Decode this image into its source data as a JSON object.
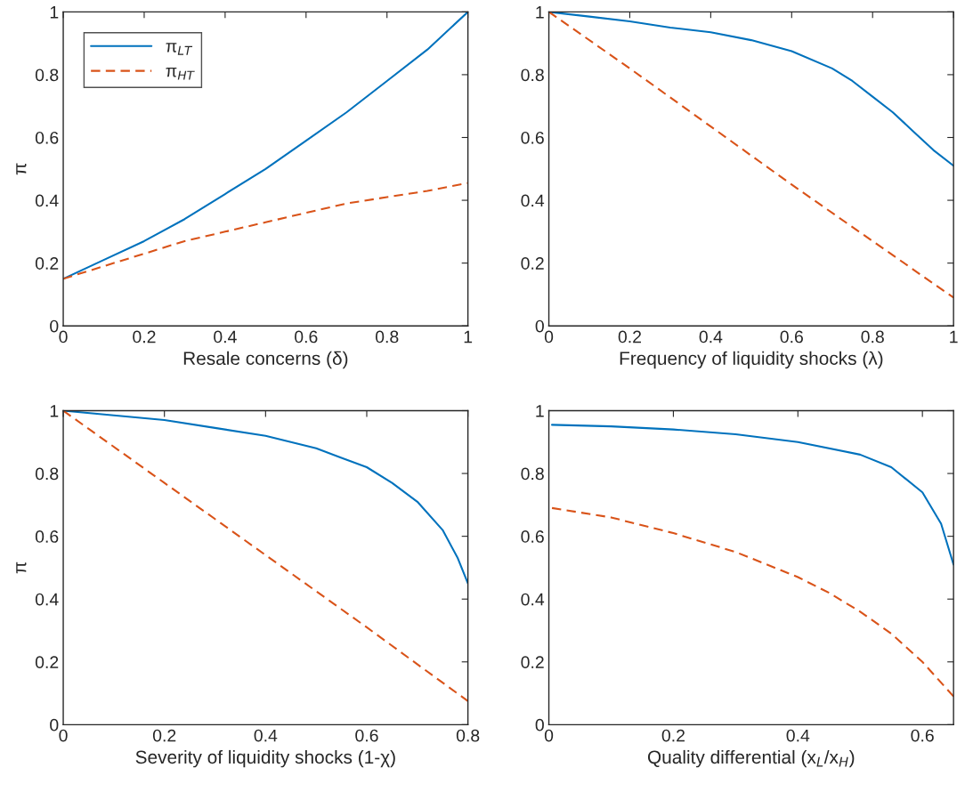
{
  "chart_data": [
    {
      "type": "line",
      "xlabel": "Resale concerns (δ)",
      "ylabel": "π",
      "xlim": [
        0,
        1
      ],
      "ylim": [
        0,
        1
      ],
      "xticks": [
        0,
        0.2,
        0.4,
        0.6,
        0.8,
        1
      ],
      "yticks": [
        0,
        0.2,
        0.4,
        0.6,
        0.8,
        1
      ],
      "legend": "top left",
      "grid": false,
      "series": [
        {
          "name": "π$_{LT}$",
          "color": "#0072bd",
          "line_style": "solid",
          "x": [
            0,
            0.1,
            0.2,
            0.3,
            0.4,
            0.5,
            0.6,
            0.7,
            0.8,
            0.9,
            1
          ],
          "values": [
            0.15,
            0.21,
            0.27,
            0.34,
            0.42,
            0.5,
            0.59,
            0.68,
            0.78,
            0.88,
            1.0
          ]
        },
        {
          "name": "π$_{HT}$",
          "color": "#d95319",
          "line_style": "dashed",
          "x": [
            0,
            0.1,
            0.2,
            0.3,
            0.4,
            0.5,
            0.6,
            0.7,
            0.8,
            0.9,
            1
          ],
          "values": [
            0.15,
            0.19,
            0.23,
            0.27,
            0.3,
            0.33,
            0.36,
            0.39,
            0.41,
            0.43,
            0.455
          ]
        }
      ]
    },
    {
      "type": "line",
      "xlabel": "Frequency of liquidity shocks (λ)",
      "xlim": [
        0,
        1
      ],
      "ylim": [
        0,
        1
      ],
      "xticks": [
        0,
        0.2,
        0.4,
        0.6,
        0.8,
        1
      ],
      "yticks": [
        0,
        0.2,
        0.4,
        0.6,
        0.8,
        1
      ],
      "grid": false,
      "series": [
        {
          "color": "#0072bd",
          "line_style": "solid",
          "x": [
            0,
            0.1,
            0.2,
            0.3,
            0.4,
            0.5,
            0.6,
            0.7,
            0.75,
            0.8,
            0.85,
            0.9,
            0.95,
            1
          ],
          "values": [
            1,
            0.985,
            0.97,
            0.95,
            0.935,
            0.91,
            0.875,
            0.82,
            0.78,
            0.73,
            0.68,
            0.62,
            0.56,
            0.51
          ]
        },
        {
          "color": "#d95319",
          "line_style": "dashed",
          "x": [
            0,
            0.2,
            0.4,
            0.6,
            0.8,
            1
          ],
          "values": [
            1,
            0.82,
            0.635,
            0.45,
            0.27,
            0.09
          ]
        }
      ]
    },
    {
      "type": "line",
      "xlabel": "Severity of liquidity shocks (1-χ)",
      "ylabel": "π",
      "xlim": [
        0,
        0.8
      ],
      "ylim": [
        0,
        1
      ],
      "xticks": [
        0,
        0.2,
        0.4,
        0.6,
        0.8
      ],
      "yticks": [
        0,
        0.2,
        0.4,
        0.6,
        0.8,
        1
      ],
      "grid": false,
      "series": [
        {
          "color": "#0072bd",
          "line_style": "solid",
          "x": [
            0,
            0.1,
            0.2,
            0.3,
            0.4,
            0.5,
            0.55,
            0.6,
            0.65,
            0.7,
            0.75,
            0.78,
            0.8
          ],
          "values": [
            1,
            0.985,
            0.97,
            0.945,
            0.92,
            0.88,
            0.85,
            0.82,
            0.77,
            0.71,
            0.62,
            0.53,
            0.45
          ]
        },
        {
          "color": "#d95319",
          "line_style": "dashed",
          "x": [
            0,
            0.2,
            0.4,
            0.6,
            0.8
          ],
          "values": [
            1,
            0.77,
            0.54,
            0.31,
            0.075
          ]
        }
      ]
    },
    {
      "type": "line",
      "xlabel": "Quality differential (x$_{L}$/x$_{H}$)",
      "xlim": [
        0,
        0.65
      ],
      "ylim": [
        0,
        1
      ],
      "xticks": [
        0,
        0.2,
        0.4,
        0.6
      ],
      "yticks": [
        0,
        0.2,
        0.4,
        0.6,
        0.8,
        1
      ],
      "grid": false,
      "series": [
        {
          "color": "#0072bd",
          "line_style": "solid",
          "x": [
            0.005,
            0.1,
            0.2,
            0.3,
            0.4,
            0.5,
            0.55,
            0.6,
            0.63,
            0.65
          ],
          "values": [
            0.955,
            0.95,
            0.94,
            0.925,
            0.9,
            0.86,
            0.82,
            0.74,
            0.64,
            0.51
          ]
        },
        {
          "color": "#d95319",
          "line_style": "dashed",
          "x": [
            0.005,
            0.1,
            0.2,
            0.3,
            0.4,
            0.45,
            0.5,
            0.55,
            0.6,
            0.65
          ],
          "values": [
            0.69,
            0.66,
            0.61,
            0.55,
            0.47,
            0.42,
            0.36,
            0.29,
            0.2,
            0.09
          ]
        }
      ]
    }
  ]
}
